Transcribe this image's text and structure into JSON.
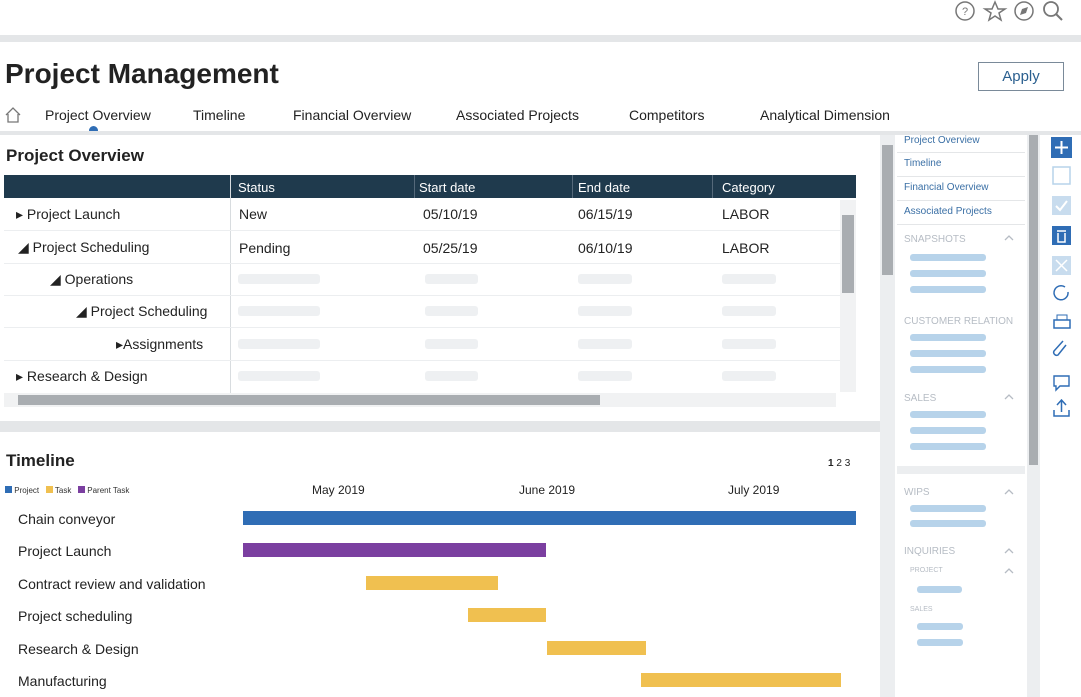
{
  "header": {
    "title": "Project Management",
    "apply_button": "Apply",
    "tabs": [
      "Project Overview",
      "Timeline",
      "Financial Overview",
      "Associated Projects",
      "Competitors",
      "Analytical Dimension"
    ]
  },
  "project_overview": {
    "title": "Project Overview",
    "columns": [
      "Status",
      "Start date",
      "End date",
      "Category"
    ],
    "rows": [
      {
        "name": "Project Launch",
        "status": "New",
        "start": "05/10/19",
        "end": "06/15/19",
        "category": "LABOR"
      },
      {
        "name": "Project Scheduling",
        "status": "Pending",
        "start": "05/25/19",
        "end": "06/10/19",
        "category": "LABOR"
      },
      {
        "name": "Operations"
      },
      {
        "name": "Project Scheduling"
      },
      {
        "name": "Assignments"
      },
      {
        "name": "Research & Design"
      }
    ]
  },
  "timeline": {
    "title": "Timeline",
    "pages": [
      "1",
      "2",
      "3"
    ],
    "legend": [
      "Project",
      "Task",
      "Parent Task"
    ],
    "months": [
      "May 2019",
      "June 2019",
      "July 2019"
    ],
    "tasks": [
      "Chain conveyor",
      "Project Launch",
      "Contract review and validation",
      "Project scheduling",
      "Research & Design",
      "Manufacturing"
    ]
  },
  "side_panel": {
    "links": [
      "Project Overview",
      "Timeline",
      "Financial Overview",
      "Associated Projects"
    ],
    "sections": [
      "SNAPSHOTS",
      "CUSTOMER RELATION",
      "SALES",
      "WIPS",
      "INQUIRIES"
    ],
    "subsections": [
      "PROJECT",
      "SALES"
    ]
  }
}
